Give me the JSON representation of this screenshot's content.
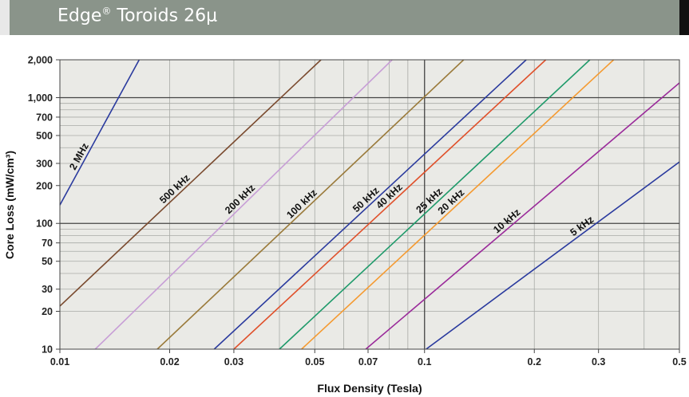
{
  "header": {
    "title_main": "Edge",
    "title_mark": "®",
    "title_rest": " Toroids 26μ"
  },
  "colors": {
    "banner": "#8a948a",
    "plot_background": "#eaeae6"
  },
  "chart_data": {
    "type": "line",
    "title": "Edge® Toroids 26μ",
    "xlabel": "Flux Density (Tesla)",
    "ylabel": "Core Loss (mW/cm³)",
    "x_scale": "log",
    "y_scale": "log",
    "xlim": [
      0.01,
      0.5
    ],
    "ylim": [
      10,
      2000
    ],
    "grid": true,
    "x_ticks": [
      0.01,
      0.02,
      0.03,
      0.05,
      0.07,
      0.1,
      0.2,
      0.3,
      0.5
    ],
    "x_tick_labels": [
      "0.01",
      "0.02",
      "0.03",
      "0.05",
      "0.07",
      "0.1",
      "0.2",
      "0.3",
      "0.5"
    ],
    "y_ticks": [
      10,
      20,
      30,
      50,
      70,
      100,
      200,
      300,
      500,
      700,
      1000,
      2000
    ],
    "y_tick_labels": [
      "10",
      "20",
      "30",
      "50",
      "70",
      "100",
      "200",
      "300",
      "500",
      "700",
      "1,000",
      "2,000"
    ],
    "series": [
      {
        "name": "2 MHz",
        "color": "#2a3a9e",
        "points": [
          [
            0.01,
            140
          ],
          [
            0.0165,
            2000
          ]
        ]
      },
      {
        "name": "500 kHz",
        "color": "#7a4a2e",
        "points": [
          [
            0.01,
            22
          ],
          [
            0.052,
            2000
          ]
        ]
      },
      {
        "name": "200 kHz",
        "color": "#c79ed6",
        "points": [
          [
            0.0125,
            10
          ],
          [
            0.0815,
            2000
          ]
        ]
      },
      {
        "name": "100 kHz",
        "color": "#9a7a3a",
        "points": [
          [
            0.0185,
            10
          ],
          [
            0.128,
            2000
          ]
        ]
      },
      {
        "name": "50 kHz",
        "color": "#2a3a9e",
        "points": [
          [
            0.0265,
            10
          ],
          [
            0.19,
            2000
          ]
        ]
      },
      {
        "name": "40 kHz",
        "color": "#e0502a",
        "points": [
          [
            0.03,
            10
          ],
          [
            0.215,
            2000
          ]
        ]
      },
      {
        "name": "25 kHz",
        "color": "#1e9a6a",
        "points": [
          [
            0.04,
            10
          ],
          [
            0.284,
            2000
          ]
        ]
      },
      {
        "name": "20 kHz",
        "color": "#f59a30",
        "points": [
          [
            0.046,
            10
          ],
          [
            0.33,
            2000
          ]
        ]
      },
      {
        "name": "10 kHz",
        "color": "#9a2a9a",
        "points": [
          [
            0.069,
            10
          ],
          [
            0.5,
            1310
          ]
        ]
      },
      {
        "name": "5 kHz",
        "color": "#2a3a9e",
        "points": [
          [
            0.101,
            10
          ],
          [
            0.5,
            308
          ]
        ]
      }
    ]
  }
}
